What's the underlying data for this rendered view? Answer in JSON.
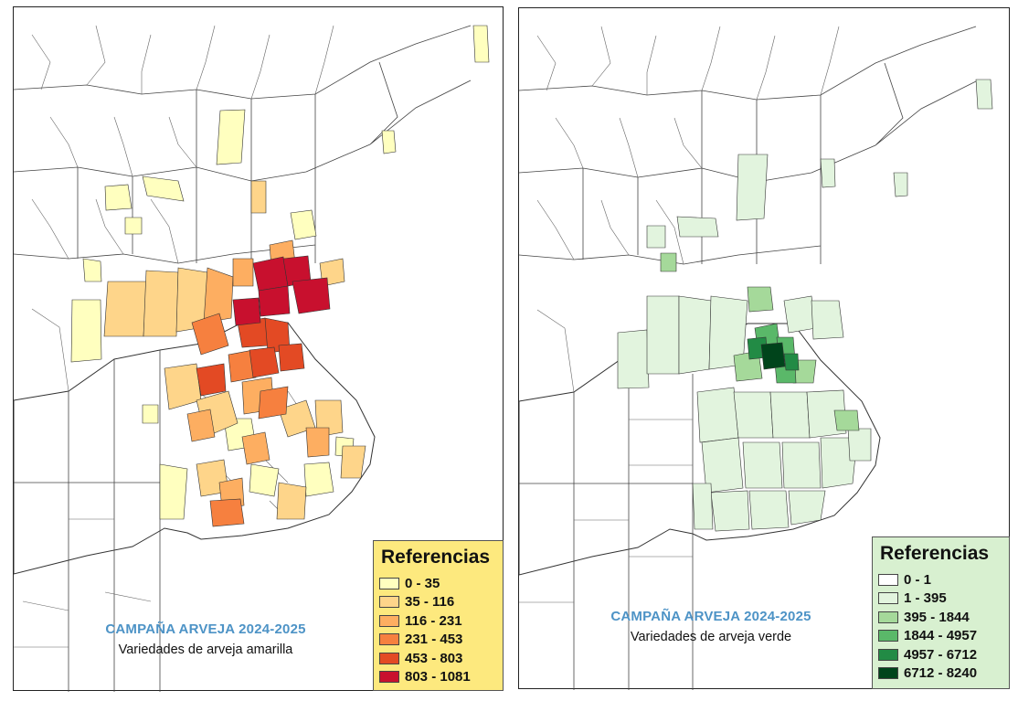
{
  "maps": [
    {
      "id": "amarilla",
      "title": "CAMPAÑA ARVEJA 2024-2025",
      "subtitle": "Variedades de arveja amarilla",
      "legend": {
        "title": "Referencias",
        "background": "#fde97e",
        "classes": [
          {
            "label": "0 - 35",
            "color": "#ffffbf"
          },
          {
            "label": "35 - 116",
            "color": "#fed58a"
          },
          {
            "label": "116 - 231",
            "color": "#fdae61"
          },
          {
            "label": "231 - 453",
            "color": "#f6803f"
          },
          {
            "label": "453 - 803",
            "color": "#e34a24"
          },
          {
            "label": "803 - 1081",
            "color": "#c8102e"
          }
        ]
      }
    },
    {
      "id": "verde",
      "title": "CAMPAÑA ARVEJA 2024-2025",
      "subtitle": "Variedades de arveja verde",
      "legend": {
        "title": "Referencias",
        "background": "#d8f0d0",
        "classes": [
          {
            "label": "0 - 1",
            "color": "#ffffff"
          },
          {
            "label": "1 - 395",
            "color": "#e2f4de"
          },
          {
            "label": "395 - 1844",
            "color": "#a5d99a"
          },
          {
            "label": "1844 - 4957",
            "color": "#5ab869"
          },
          {
            "label": "4957 - 6712",
            "color": "#228b45"
          },
          {
            "label": "6712 - 8240",
            "color": "#00441b"
          }
        ]
      }
    }
  ]
}
